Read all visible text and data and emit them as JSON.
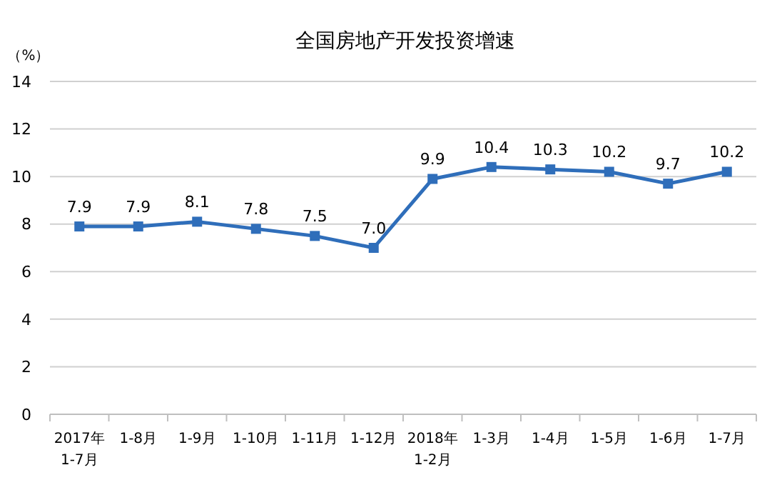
{
  "chart_data": {
    "type": "line",
    "title": "全国房地产开发投资增速",
    "ylabel": "（%）",
    "categories": [
      "2017年\n1-7月",
      "1-8月",
      "1-9月",
      "1-10月",
      "1-11月",
      "1-12月",
      "2018年\n1-2月",
      "1-3月",
      "1-4月",
      "1-5月",
      "1-6月",
      "1-7月"
    ],
    "series": [
      {
        "color": "#2f6eba",
        "values": [
          7.9,
          7.9,
          8.1,
          7.8,
          7.5,
          7.0,
          9.9,
          10.4,
          10.3,
          10.2,
          9.7,
          10.2
        ],
        "value_labels": [
          "7.9",
          "7.9",
          "8.1",
          "7.8",
          "7.5",
          "7.0",
          "9.9",
          "10.4",
          "10.3",
          "10.2",
          "9.7",
          "10.2"
        ]
      }
    ],
    "ylim": [
      0,
      14
    ],
    "yticks": [
      0,
      2,
      4,
      6,
      8,
      10,
      12,
      14
    ],
    "grid": "y",
    "marker": "square",
    "line_style": "solid"
  }
}
